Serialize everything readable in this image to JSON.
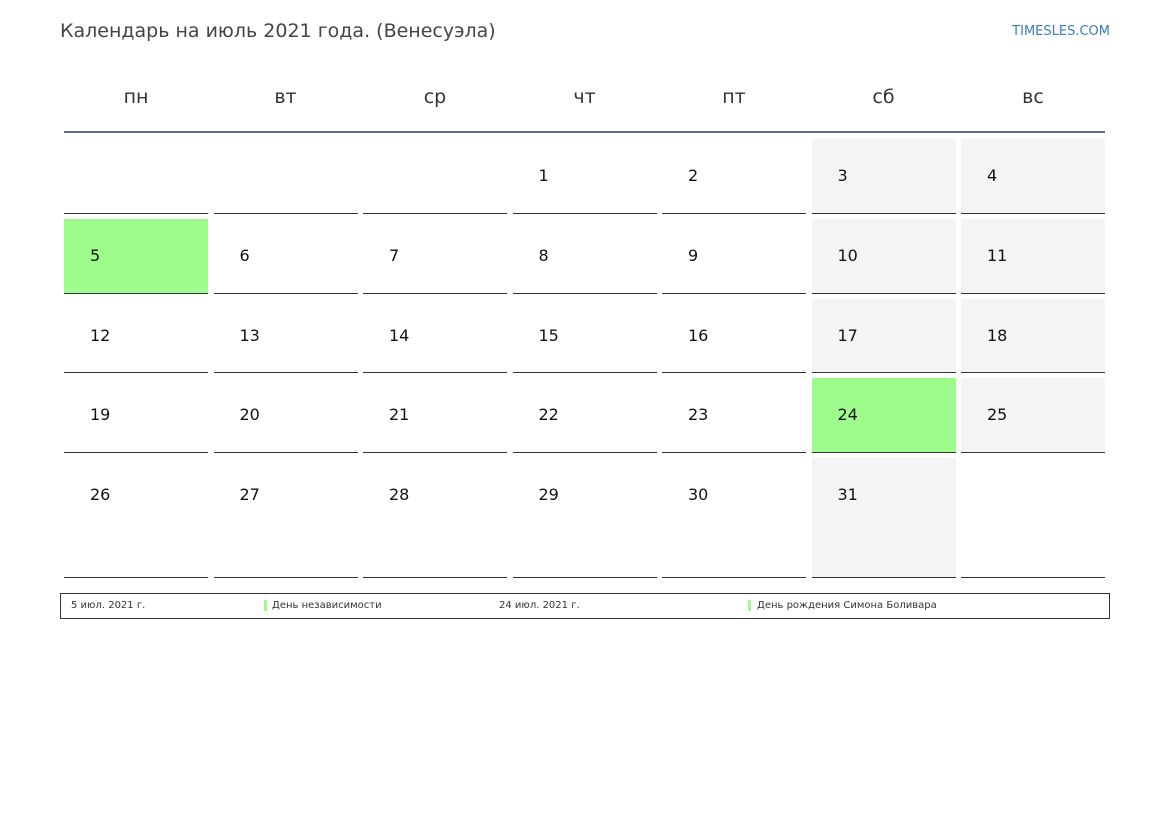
{
  "header": {
    "title": "Календарь на июль 2021 года. (Венесуэла)",
    "site": "TIMESLES.COM"
  },
  "calendar": {
    "weekdays": [
      "пн",
      "вт",
      "ср",
      "чт",
      "пт",
      "сб",
      "вс"
    ],
    "weeks": [
      [
        null,
        null,
        null,
        1,
        2,
        3,
        4
      ],
      [
        5,
        6,
        7,
        8,
        9,
        10,
        11
      ],
      [
        12,
        13,
        14,
        15,
        16,
        17,
        18
      ],
      [
        19,
        20,
        21,
        22,
        23,
        24,
        25
      ],
      [
        26,
        27,
        28,
        29,
        30,
        31,
        null
      ]
    ],
    "highlight": {
      "color": "#9efc8c",
      "days": [
        5,
        24
      ]
    }
  },
  "legend": [
    {
      "date": "5 июл. 2021 г.",
      "name": "День независимости"
    },
    {
      "date": "24 июл. 2021 г.",
      "name": "День рождения Симона Боливара"
    }
  ]
}
